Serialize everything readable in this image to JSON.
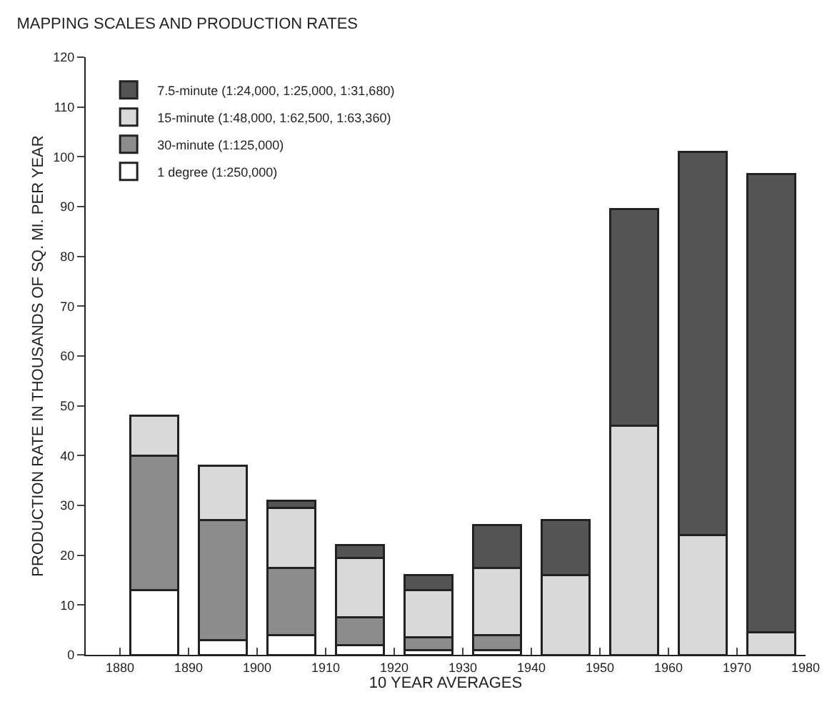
{
  "chart_data": {
    "type": "bar",
    "stacked": true,
    "title": "MAPPING SCALES AND PRODUCTION RATES",
    "xlabel": "10 YEAR AVERAGES",
    "ylabel": "PRODUCTION RATE IN THOUSANDS OF SQ. MI. PER YEAR",
    "x": [
      1885,
      1895,
      1905,
      1915,
      1925,
      1935,
      1945,
      1955,
      1965,
      1975
    ],
    "series": [
      {
        "name": "1 degree (1:250,000)",
        "color": "#ffffff",
        "values": [
          13,
          3,
          4,
          2,
          1,
          1,
          null,
          null,
          null,
          null
        ]
      },
      {
        "name": "30-minute (1:125,000)",
        "color": "#8c8c8c",
        "values": [
          27,
          24,
          13.5,
          5.5,
          2.5,
          3,
          null,
          null,
          null,
          null
        ]
      },
      {
        "name": "15-minute (1:48,000, 1:62,500, 1:63,360)",
        "color": "#d9d9d9",
        "values": [
          8,
          11,
          12,
          12,
          9.5,
          13.5,
          16,
          46,
          24,
          4.5
        ]
      },
      {
        "name": "7.5-minute (1:24,000, 1:25,000, 1:31,680)",
        "color": "#555555",
        "values": [
          null,
          null,
          1.5,
          2.5,
          3,
          8.5,
          11,
          43.5,
          77,
          92
        ]
      }
    ],
    "xlim": [
      1875,
      1980
    ],
    "xticks": [
      1880,
      1890,
      1900,
      1910,
      1920,
      1930,
      1940,
      1950,
      1960,
      1970,
      1980
    ],
    "ylim": [
      0,
      120
    ],
    "yticks": [
      0,
      10,
      20,
      30,
      40,
      50,
      60,
      70,
      80,
      90,
      100,
      110,
      120
    ],
    "legend": "top left"
  }
}
